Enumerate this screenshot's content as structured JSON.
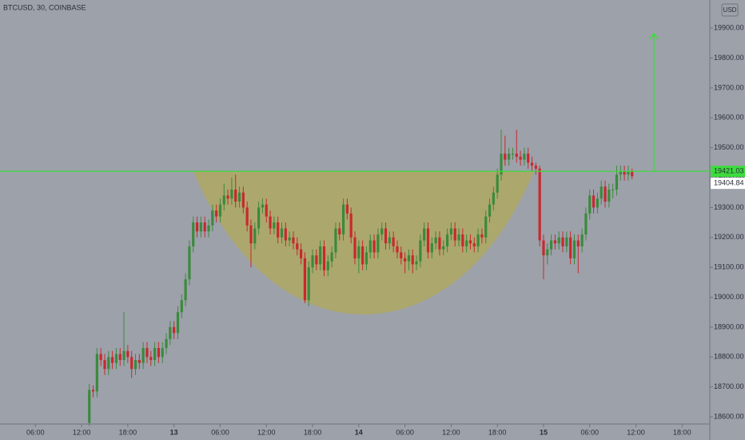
{
  "chart_data": {
    "type": "candlestick",
    "title": "BTCUSD, 30, COINBASE",
    "currency": "USD",
    "up_color": "#3a8a3c",
    "down_color": "#c8282e",
    "level": 19421.03,
    "level_color": "#3ddc3d",
    "xlim": [
      1.4,
      93.6
    ],
    "xticks": [
      {
        "value": 6,
        "label": "06:00"
      },
      {
        "value": 12,
        "label": "12:00"
      },
      {
        "value": 18,
        "label": "18:00"
      },
      {
        "value": 24,
        "label": "13"
      },
      {
        "value": 30,
        "label": "06:00"
      },
      {
        "value": 36,
        "label": "12:00"
      },
      {
        "value": 42,
        "label": "18:00"
      },
      {
        "value": 48,
        "label": "14"
      },
      {
        "value": 54,
        "label": "06:00"
      },
      {
        "value": 60,
        "label": "12:00"
      },
      {
        "value": 66,
        "label": "18:00"
      },
      {
        "value": 72,
        "label": "15"
      },
      {
        "value": 78,
        "label": "06:00"
      },
      {
        "value": 84,
        "label": "12:00"
      },
      {
        "value": 90,
        "label": "18:00"
      }
    ],
    "ylim": [
      18576,
      19994
    ],
    "yticks": [
      {
        "value": 18600,
        "label": "18600.00"
      },
      {
        "value": 18700,
        "label": "18700.00"
      },
      {
        "value": 18800,
        "label": "18800.00"
      },
      {
        "value": 18900,
        "label": "18900.00"
      },
      {
        "value": 19000,
        "label": "19000.00"
      },
      {
        "value": 19100,
        "label": "19100.00"
      },
      {
        "value": 19200,
        "label": "19200.00"
      },
      {
        "value": 19300,
        "label": "19300.00"
      },
      {
        "value": 19400,
        "label": "19400.00"
      },
      {
        "value": 19500,
        "label": "19500.00"
      },
      {
        "value": 19600,
        "label": "19600.00"
      },
      {
        "value": 19700,
        "label": "19700.00"
      },
      {
        "value": 19800,
        "label": "19800.00"
      },
      {
        "value": 19900,
        "label": "19900.00"
      }
    ],
    "x": [
      13,
      13.5,
      14,
      14.5,
      15,
      15.5,
      16,
      16.5,
      17,
      17.5,
      18,
      18.5,
      19,
      19.5,
      20,
      20.5,
      21,
      21.5,
      22,
      22.5,
      23,
      23.5,
      24,
      24.5,
      25,
      25.5,
      26,
      26.5,
      27,
      27.5,
      28,
      28.5,
      29,
      29.5,
      30,
      30.5,
      31,
      31.5,
      32,
      32.5,
      33,
      33.5,
      34,
      34.5,
      35,
      35.5,
      36,
      36.5,
      37,
      37.5,
      38,
      38.5,
      39,
      39.5,
      40,
      40.5,
      41,
      41.5,
      42,
      42.5,
      43,
      43.5,
      44,
      44.5,
      45,
      45.5,
      46,
      46.5,
      47,
      47.5,
      48,
      48.5,
      49,
      49.5,
      50,
      50.5,
      51,
      51.5,
      52,
      52.5,
      53,
      53.5,
      54,
      54.5,
      55,
      55.5,
      56,
      56.5,
      57,
      57.5,
      58,
      58.5,
      59,
      59.5,
      60,
      60.5,
      61,
      61.5,
      62,
      62.5,
      63,
      63.5,
      64,
      64.5,
      65,
      65.5,
      66,
      66.5,
      67,
      67.5,
      68,
      68.5,
      69,
      69.5,
      70,
      70.5,
      71,
      71.5,
      72,
      72.5,
      73,
      73.5,
      74,
      74.5,
      75,
      75.5,
      76,
      76.5,
      77,
      77.5,
      78,
      78.5,
      79,
      79.5,
      80,
      80.5,
      81,
      81.5,
      82,
      82.5,
      83,
      83.5
    ],
    "open": [
      18580,
      18690,
      18685,
      18810,
      18790,
      18760,
      18800,
      18780,
      18810,
      18790,
      18820,
      18800,
      18760,
      18790,
      18780,
      18830,
      18800,
      18790,
      18830,
      18800,
      18830,
      18860,
      18900,
      18880,
      18950,
      18990,
      19060,
      19170,
      19250,
      19220,
      19250,
      19220,
      19240,
      19290,
      19270,
      19310,
      19340,
      19330,
      19360,
      19320,
      19350,
      19300,
      19240,
      19180,
      19230,
      19300,
      19310,
      19270,
      19230,
      19250,
      19200,
      19230,
      19190,
      19200,
      19180,
      19160,
      19130,
      18990,
      19100,
      19140,
      19110,
      19170,
      19090,
      19120,
      19150,
      19230,
      19210,
      19310,
      19280,
      19200,
      19130,
      19170,
      19110,
      19150,
      19190,
      19150,
      19210,
      19230,
      19180,
      19200,
      19170,
      19150,
      19130,
      19120,
      19140,
      19110,
      19120,
      19190,
      19230,
      19150,
      19180,
      19200,
      19160,
      19170,
      19210,
      19230,
      19190,
      19210,
      19170,
      19190,
      19180,
      19170,
      19210,
      19200,
      19270,
      19310,
      19350,
      19410,
      19480,
      19460,
      19480,
      19480,
      19470,
      19460,
      19480,
      19450,
      19440,
      19430,
      19190,
      19140,
      19160,
      19190,
      19180,
      19200,
      19170,
      19200,
      19130,
      19190,
      19170,
      19210,
      19280,
      19340,
      19300,
      19330,
      19370,
      19320,
      19360,
      19360,
      19410,
      19420,
      19410,
      19420
    ],
    "high": [
      18710,
      18705,
      18830,
      18830,
      18810,
      18820,
      18820,
      18830,
      18830,
      18950,
      18840,
      18820,
      18810,
      18810,
      18850,
      18850,
      18820,
      18850,
      18850,
      18850,
      18880,
      18920,
      18920,
      18970,
      19010,
      19080,
      19190,
      19270,
      19270,
      19270,
      19270,
      19260,
      19310,
      19310,
      19330,
      19380,
      19360,
      19400,
      19410,
      19370,
      19370,
      19320,
      19260,
      19250,
      19320,
      19330,
      19330,
      19290,
      19270,
      19270,
      19250,
      19250,
      19220,
      19220,
      19200,
      19180,
      19150,
      19120,
      19160,
      19160,
      19190,
      19190,
      19140,
      19170,
      19250,
      19250,
      19330,
      19330,
      19300,
      19220,
      19190,
      19190,
      19170,
      19210,
      19210,
      19230,
      19250,
      19250,
      19220,
      19220,
      19190,
      19170,
      19150,
      19160,
      19160,
      19140,
      19210,
      19250,
      19250,
      19200,
      19220,
      19220,
      19190,
      19230,
      19250,
      19250,
      19230,
      19230,
      19210,
      19210,
      19200,
      19230,
      19230,
      19290,
      19330,
      19370,
      19430,
      19560,
      19540,
      19500,
      19500,
      19560,
      19490,
      19500,
      19500,
      19470,
      19450,
      19440,
      19210,
      19180,
      19210,
      19210,
      19220,
      19220,
      19220,
      19220,
      19210,
      19210,
      19230,
      19300,
      19360,
      19360,
      19350,
      19390,
      19390,
      19380,
      19380,
      19440,
      19440,
      19440,
      19440,
      19430
    ],
    "low": [
      18570,
      18665,
      18665,
      18770,
      18740,
      18740,
      18760,
      18760,
      18770,
      18770,
      18780,
      18730,
      18740,
      18760,
      18760,
      18780,
      18770,
      18770,
      18780,
      18780,
      18810,
      18840,
      18860,
      18860,
      18930,
      18970,
      19040,
      19150,
      19200,
      19200,
      19200,
      19200,
      19220,
      19250,
      19250,
      19290,
      19310,
      19310,
      19300,
      19300,
      19280,
      19220,
      19100,
      19160,
      19210,
      19280,
      19250,
      19210,
      19210,
      19180,
      19180,
      19170,
      19170,
      19160,
      19140,
      19110,
      18980,
      18970,
      19080,
      19090,
      19090,
      19070,
      19070,
      19100,
      19130,
      19190,
      19190,
      19260,
      19180,
      19110,
      19080,
      19090,
      19090,
      19130,
      19130,
      19130,
      19190,
      19160,
      19160,
      19150,
      19130,
      19110,
      19080,
      19090,
      19080,
      19090,
      19100,
      19170,
      19130,
      19130,
      19160,
      19140,
      19140,
      19150,
      19190,
      19170,
      19170,
      19150,
      19150,
      19160,
      19150,
      19150,
      19180,
      19180,
      19250,
      19290,
      19330,
      19390,
      19440,
      19440,
      19460,
      19450,
      19440,
      19440,
      19430,
      19420,
      19410,
      19170,
      19060,
      19110,
      19140,
      19160,
      19160,
      19150,
      19150,
      19110,
      19110,
      19080,
      19150,
      19190,
      19260,
      19280,
      19280,
      19310,
      19300,
      19300,
      19330,
      19340,
      19390,
      19390,
      19390,
      19395
    ],
    "close": [
      18690,
      18685,
      18810,
      18790,
      18760,
      18800,
      18780,
      18810,
      18790,
      18820,
      18800,
      18760,
      18790,
      18780,
      18830,
      18800,
      18790,
      18830,
      18800,
      18830,
      18860,
      18900,
      18880,
      18950,
      18990,
      19060,
      19170,
      19250,
      19220,
      19250,
      19220,
      19240,
      19290,
      19270,
      19310,
      19340,
      19330,
      19360,
      19320,
      19350,
      19300,
      19240,
      19180,
      19230,
      19300,
      19310,
      19270,
      19230,
      19250,
      19200,
      19230,
      19190,
      19200,
      19180,
      19160,
      19130,
      18990,
      19100,
      19140,
      19110,
      19170,
      19090,
      19120,
      19150,
      19230,
      19210,
      19310,
      19280,
      19200,
      19130,
      19170,
      19110,
      19150,
      19190,
      19150,
      19210,
      19230,
      19180,
      19200,
      19170,
      19150,
      19130,
      19120,
      19140,
      19110,
      19120,
      19190,
      19230,
      19150,
      19180,
      19200,
      19160,
      19170,
      19210,
      19230,
      19190,
      19210,
      19170,
      19190,
      19180,
      19170,
      19210,
      19200,
      19270,
      19310,
      19350,
      19410,
      19480,
      19460,
      19480,
      19480,
      19470,
      19460,
      19480,
      19450,
      19440,
      19430,
      19190,
      19140,
      19160,
      19190,
      19180,
      19200,
      19170,
      19200,
      19130,
      19190,
      19170,
      19210,
      19280,
      19340,
      19300,
      19330,
      19370,
      19320,
      19360,
      19360,
      19410,
      19420,
      19410,
      19420,
      19404.84
    ]
  }
}
